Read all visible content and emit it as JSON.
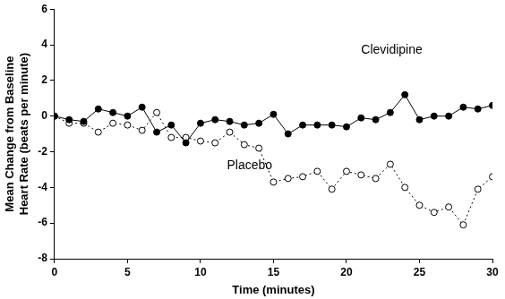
{
  "chart_data": {
    "type": "line",
    "x_label": "Time (minutes)",
    "y_label": [
      "Mean Change from Baseline",
      "Heart Rate (beats per minute)"
    ],
    "x": [
      0,
      1,
      2,
      3,
      4,
      5,
      6,
      7,
      8,
      9,
      10,
      11,
      12,
      13,
      14,
      15,
      16,
      17,
      18,
      19,
      20,
      21,
      22,
      23,
      24,
      25,
      26,
      27,
      28,
      29,
      30
    ],
    "series": [
      {
        "name": "Clevidipine",
        "color": "#000000",
        "marker": "circle",
        "line_style": "solid",
        "values": [
          0,
          -0.2,
          -0.3,
          0.4,
          0.2,
          0.0,
          0.5,
          -0.9,
          -0.5,
          -1.5,
          -0.4,
          -0.2,
          -0.3,
          -0.5,
          -0.4,
          0.1,
          -1.0,
          -0.5,
          -0.5,
          -0.5,
          -0.6,
          -0.1,
          -0.2,
          0.2,
          1.2,
          -0.2,
          0.0,
          0.0,
          0.5,
          0.4,
          0.6
        ]
      },
      {
        "name": "Placebo",
        "color": "#000000",
        "marker": "open_circle",
        "line_style": "dotted",
        "values": [
          0,
          -0.4,
          -0.4,
          -0.9,
          -0.4,
          -0.5,
          -0.8,
          0.2,
          -1.2,
          -1.2,
          -1.4,
          -1.5,
          -0.9,
          -1.6,
          -1.8,
          -3.7,
          -3.5,
          -3.4,
          -3.1,
          -4.1,
          -3.1,
          -3.3,
          -3.5,
          -2.7,
          -4.0,
          -5.0,
          -5.4,
          -5.1,
          -6.1,
          -4.1,
          -3.4
        ]
      }
    ],
    "xlim": [
      0,
      30
    ],
    "xticks": [
      0,
      5,
      10,
      15,
      20,
      25,
      30
    ],
    "ylim": [
      -8,
      6
    ],
    "yticks": [
      -8,
      -6,
      -4,
      -2,
      0,
      2,
      4,
      6
    ],
    "grid": false
  }
}
